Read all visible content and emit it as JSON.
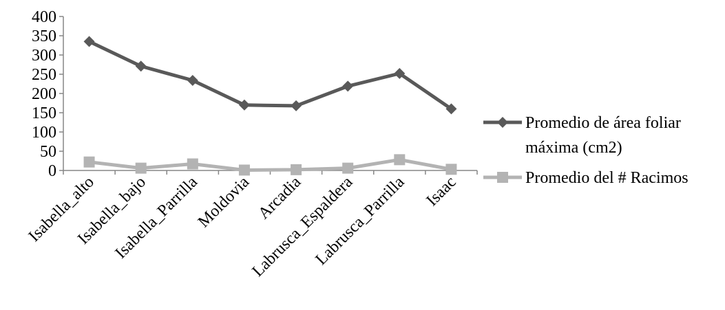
{
  "chart_data": {
    "type": "line",
    "title": "",
    "xlabel": "",
    "ylabel": "",
    "categories": [
      "Isabella_alto",
      "Isabella_bajo",
      "Isabella_Parrilla",
      "Moldovia",
      "Arcadia",
      "Labrusca_Espaldera",
      "Labrusca_Parrilla",
      "Isaac"
    ],
    "ylim": [
      0,
      400
    ],
    "yticks": [
      "0",
      "50",
      "100",
      "150",
      "200",
      "250",
      "300",
      "350",
      "400"
    ],
    "grid": false,
    "legend_position": "right",
    "series": [
      {
        "name": "Promedio de área foliar máxima (cm2)",
        "legend_lines": [
          "Promedio de área foliar",
          "máxima (cm2)"
        ],
        "marker": "diamond",
        "color": "#595959",
        "values": [
          335,
          271,
          234,
          170,
          168,
          219,
          252,
          160
        ]
      },
      {
        "name": "Promedio del # Racimos",
        "legend_lines": [
          "Promedio del # Racimos"
        ],
        "marker": "square",
        "color": "#b3b3b3",
        "values": [
          22,
          6,
          17,
          1,
          2,
          6,
          28,
          3
        ]
      }
    ]
  }
}
